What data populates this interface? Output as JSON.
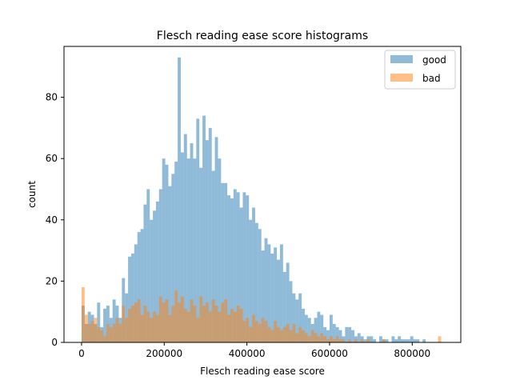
{
  "chart_data": {
    "type": "histogram",
    "title": "Flesch reading ease score histograms",
    "xlabel": "Flesch reading ease score",
    "ylabel": "count",
    "xlim": [
      -42500,
      917500
    ],
    "ylim": [
      0,
      96.6
    ],
    "xticks": [
      0,
      200000,
      400000,
      600000,
      800000
    ],
    "xtick_labels": [
      "0",
      "200000",
      "400000",
      "600000",
      "800000"
    ],
    "yticks": [
      0,
      20,
      40,
      60,
      80
    ],
    "ytick_labels": [
      "0",
      "20",
      "40",
      "60",
      "80"
    ],
    "grid": false,
    "legend_position": "top-right",
    "bin_width": 7500,
    "series": [
      {
        "name": "good",
        "color": "#1f77b4",
        "opacity": 0.5,
        "bin_starts": [
          0,
          7500,
          15000,
          22500,
          30000,
          37500,
          45000,
          52500,
          60000,
          67500,
          75000,
          82500,
          90000,
          97500,
          105000,
          112500,
          120000,
          127500,
          135000,
          142500,
          150000,
          157500,
          165000,
          172500,
          180000,
          187500,
          195000,
          202500,
          210000,
          217500,
          225000,
          232500,
          240000,
          247500,
          255000,
          262500,
          270000,
          277500,
          285000,
          292500,
          300000,
          307500,
          315000,
          322500,
          330000,
          337500,
          345000,
          352500,
          360000,
          367500,
          375000,
          382500,
          390000,
          397500,
          405000,
          412500,
          420000,
          427500,
          435000,
          442500,
          450000,
          457500,
          465000,
          472500,
          480000,
          487500,
          495000,
          502500,
          510000,
          517500,
          525000,
          532500,
          540000,
          547500,
          555000,
          562500,
          570000,
          577500,
          585000,
          592500,
          600000,
          607500,
          615000,
          622500,
          630000,
          637500,
          645000,
          652500,
          660000,
          667500,
          675000,
          682500,
          690000,
          697500,
          705000,
          712500,
          720000,
          727500,
          735000,
          742500,
          750000,
          757500,
          765000,
          772500,
          780000,
          787500,
          795000,
          802500,
          810000,
          817500,
          825000,
          832500
        ],
        "values": [
          12,
          6,
          10,
          9,
          6,
          13,
          5,
          11,
          12,
          8,
          14,
          12,
          8,
          21,
          16,
          28,
          29,
          32,
          36,
          37,
          45,
          50,
          40,
          43,
          46,
          50,
          60,
          58,
          51,
          55,
          59,
          93,
          62,
          68,
          60,
          65,
          60,
          73,
          57,
          74,
          66,
          70,
          56,
          67,
          60,
          52,
          52,
          48,
          47,
          50,
          49,
          44,
          49,
          48,
          40,
          44,
          39,
          37,
          30,
          34,
          32,
          29,
          31,
          27,
          32,
          23,
          26,
          20,
          16,
          14,
          16,
          11,
          9,
          8,
          6,
          8,
          10,
          9,
          5,
          4,
          9,
          6,
          5,
          4,
          2,
          5,
          5,
          4,
          2,
          3,
          2,
          1,
          2,
          2,
          1,
          0,
          2,
          1,
          1,
          0,
          2,
          1,
          2,
          1,
          1,
          1,
          2,
          1,
          1,
          0,
          1,
          0
        ]
      },
      {
        "name": "bad",
        "color": "#ff7f0e",
        "opacity": 0.5,
        "bin_starts": [
          0,
          7500,
          15000,
          22500,
          30000,
          37500,
          45000,
          52500,
          60000,
          67500,
          75000,
          82500,
          90000,
          97500,
          105000,
          112500,
          120000,
          127500,
          135000,
          142500,
          150000,
          157500,
          165000,
          172500,
          180000,
          187500,
          195000,
          202500,
          210000,
          217500,
          225000,
          232500,
          240000,
          247500,
          255000,
          262500,
          270000,
          277500,
          285000,
          292500,
          300000,
          307500,
          315000,
          322500,
          330000,
          337500,
          345000,
          352500,
          360000,
          367500,
          375000,
          382500,
          390000,
          397500,
          405000,
          412500,
          420000,
          427500,
          435000,
          442500,
          450000,
          457500,
          465000,
          472500,
          480000,
          487500,
          495000,
          502500,
          510000,
          517500,
          525000,
          532500,
          540000,
          547500,
          555000,
          562500,
          570000,
          577500,
          585000,
          592500,
          600000,
          607500,
          615000,
          622500,
          630000,
          637500,
          645000,
          652500,
          660000,
          667500,
          675000,
          682500,
          690000,
          697500,
          705000,
          712500,
          720000,
          727500,
          735000,
          742500,
          750000,
          757500,
          765000,
          772500,
          780000,
          787500,
          795000,
          802500,
          810000,
          817500,
          825000,
          832500,
          840000,
          847500,
          855000,
          862500
        ],
        "values": [
          18,
          9,
          6,
          7,
          8,
          5,
          4,
          2,
          6,
          5,
          6,
          8,
          6,
          12,
          8,
          11,
          12,
          13,
          14,
          9,
          12,
          10,
          8,
          10,
          9,
          15,
          13,
          14,
          9,
          12,
          17,
          13,
          15,
          11,
          10,
          14,
          12,
          8,
          15,
          12,
          13,
          10,
          14,
          12,
          10,
          13,
          14,
          9,
          11,
          10,
          12,
          11,
          7,
          8,
          5,
          9,
          7,
          6,
          8,
          7,
          5,
          4,
          7,
          5,
          4,
          5,
          6,
          4,
          6,
          3,
          5,
          4,
          3,
          2,
          4,
          3,
          2,
          3,
          2,
          1,
          2,
          1,
          2,
          1,
          1,
          0,
          1,
          0,
          1,
          0,
          1,
          0,
          1,
          0,
          0,
          0,
          0,
          1,
          0,
          0,
          0,
          0,
          0,
          0,
          0,
          0,
          0,
          0,
          0,
          0,
          0,
          0,
          0,
          0,
          0,
          2
        ]
      }
    ]
  }
}
